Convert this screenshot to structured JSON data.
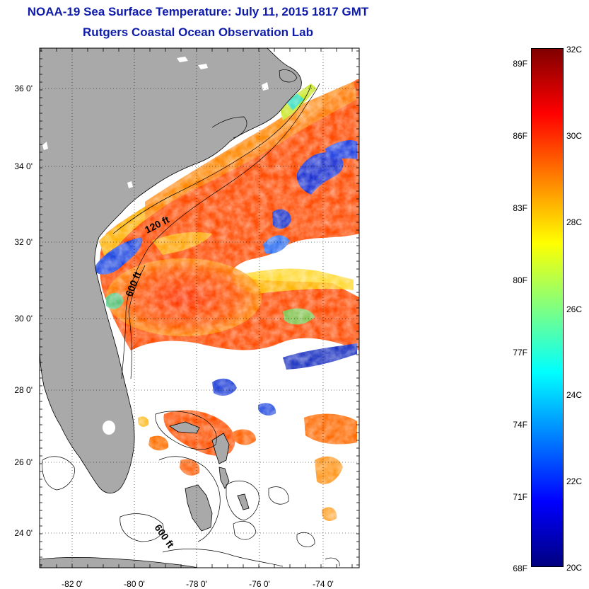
{
  "header": {
    "title": "NOAA-19 Sea Surface Temperature:  July 11, 2015 1817 GMT",
    "subtitle": "Rutgers Coastal Ocean Observation Lab"
  },
  "map": {
    "lat_ticks": [
      "36 0'",
      "34 0'",
      "32 0'",
      "30 0'",
      "28 0'",
      "26 0'",
      "24 0'"
    ],
    "lon_ticks": [
      "-82 0'",
      "-80 0'",
      "-78 0'",
      "-76 0'",
      "-74 0'"
    ],
    "lat_range": [
      23,
      37.1
    ],
    "lon_range": [
      -83,
      -73.1
    ],
    "contour_labels": [
      "120 ft",
      "600 ft",
      "600 ft"
    ],
    "colors": {
      "land": "#a9a9a9",
      "no_data": "#ffffff",
      "warm": "#ff3a00",
      "cold": "#1030c8"
    }
  },
  "colorbar": {
    "fahrenheit_labels": [
      "89F",
      "86F",
      "83F",
      "80F",
      "77F",
      "74F",
      "71F",
      "68F"
    ],
    "celsius_labels": [
      "32C",
      "30C",
      "28C",
      "26C",
      "24C",
      "22C",
      "20C"
    ],
    "range_c": [
      20,
      32
    ],
    "colors": [
      "#000080",
      "#0000ff",
      "#0080ff",
      "#00ffff",
      "#80ff80",
      "#ffff00",
      "#ff8000",
      "#ff0000",
      "#800000"
    ]
  }
}
